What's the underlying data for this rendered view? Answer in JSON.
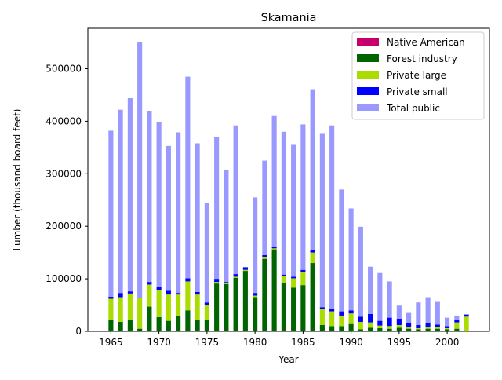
{
  "chart_data": {
    "type": "bar",
    "stacked": true,
    "title": "Skamania",
    "xlabel": "Year",
    "ylabel": "Lumber (thousand board feet)",
    "xlim": [
      1962.6,
      2004.4
    ],
    "ylim": [
      0,
      577000
    ],
    "x_ticks": [
      1965,
      1970,
      1975,
      1980,
      1985,
      1990,
      1995,
      2000
    ],
    "y_ticks": [
      0,
      100000,
      200000,
      300000,
      400000,
      500000
    ],
    "legend_position": "top-right",
    "grid": false,
    "x": [
      1965,
      1966,
      1967,
      1968,
      1969,
      1970,
      1971,
      1972,
      1973,
      1974,
      1975,
      1976,
      1977,
      1978,
      1979,
      1980,
      1981,
      1982,
      1983,
      1984,
      1985,
      1986,
      1987,
      1988,
      1989,
      1990,
      1991,
      1992,
      1993,
      1994,
      1995,
      1996,
      1997,
      1998,
      1999,
      2000,
      2001,
      2002
    ],
    "series": [
      {
        "name": "Native American",
        "color": "#c8006e",
        "values": [
          0,
          0,
          0,
          0,
          0,
          0,
          0,
          0,
          0,
          0,
          0,
          0,
          0,
          0,
          0,
          0,
          0,
          0,
          0,
          0,
          0,
          0,
          0,
          0,
          0,
          0,
          0,
          0,
          0,
          0,
          0,
          0,
          0,
          0,
          0,
          0,
          0,
          0
        ]
      },
      {
        "name": "Forest industry",
        "color": "#006400",
        "values": [
          22000,
          18000,
          22000,
          5000,
          47000,
          27000,
          20000,
          30000,
          40000,
          22000,
          22000,
          91000,
          90000,
          102000,
          115000,
          65000,
          138000,
          156000,
          93000,
          83000,
          88000,
          130000,
          12000,
          10000,
          10000,
          14000,
          4000,
          7000,
          6000,
          5000,
          7000,
          5000,
          4000,
          5000,
          5000,
          4000,
          5000,
          0
        ]
      },
      {
        "name": "Private large",
        "color": "#aadc00",
        "values": [
          40000,
          47000,
          50000,
          58000,
          42000,
          52000,
          50000,
          40000,
          55000,
          48000,
          28000,
          3000,
          2000,
          2000,
          2000,
          3000,
          4000,
          2000,
          12000,
          18000,
          25000,
          20000,
          30000,
          28000,
          20000,
          20000,
          14000,
          10000,
          5000,
          5000,
          5000,
          3000,
          2000,
          3000,
          3000,
          2000,
          12000,
          28000
        ]
      },
      {
        "name": "Private small",
        "color": "#0000ff",
        "values": [
          4000,
          8000,
          4000,
          0,
          5000,
          6000,
          7000,
          3000,
          6000,
          5000,
          5000,
          6000,
          2000,
          5000,
          5000,
          5000,
          3000,
          2000,
          3000,
          3000,
          4000,
          5000,
          4000,
          5000,
          8000,
          6000,
          10000,
          16000,
          9000,
          16000,
          12000,
          8000,
          6000,
          7000,
          5000,
          4000,
          5000,
          4000
        ]
      },
      {
        "name": "Total public",
        "color": "#9999ff",
        "values": [
          316000,
          349000,
          368000,
          487000,
          326000,
          313000,
          276000,
          306000,
          384000,
          283000,
          189000,
          270000,
          214000,
          283000,
          0,
          182000,
          180000,
          250000,
          272000,
          251000,
          277000,
          306000,
          330000,
          349000,
          232000,
          194000,
          171000,
          90000,
          91000,
          69000,
          25000,
          19000,
          43000,
          50000,
          43000,
          16000,
          8000,
          0
        ]
      }
    ]
  }
}
